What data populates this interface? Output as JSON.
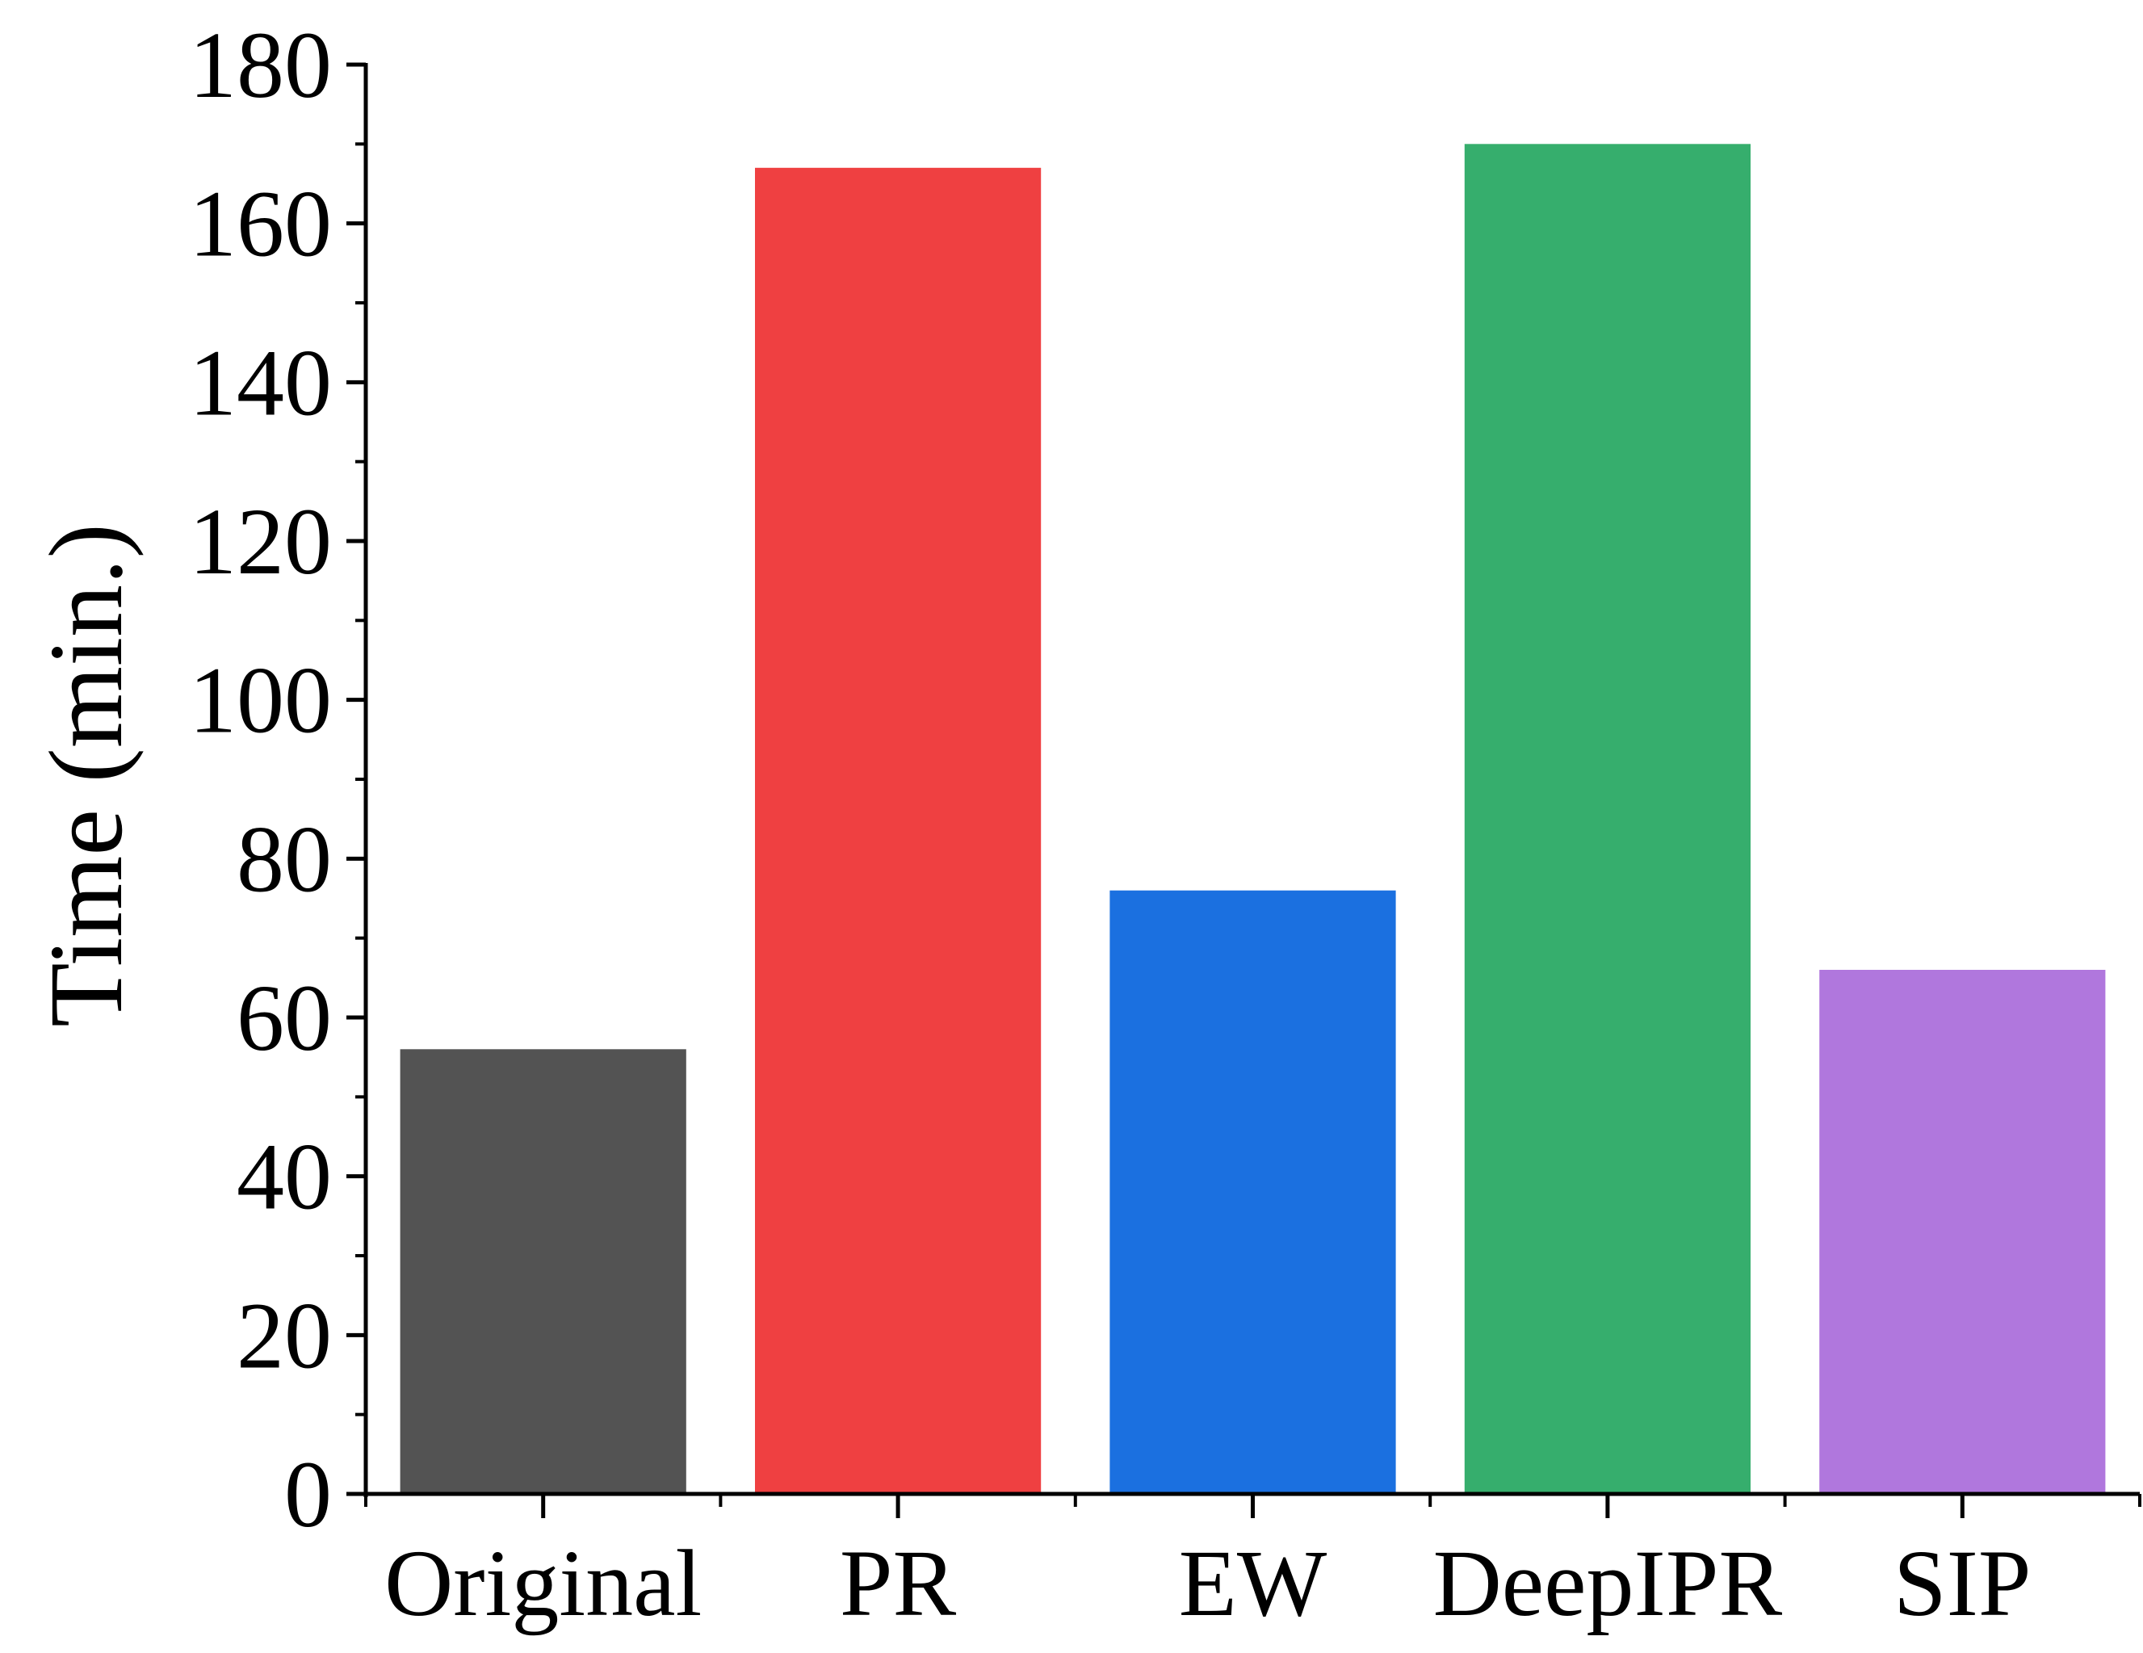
{
  "chart_data": {
    "type": "bar",
    "title": "",
    "xlabel": "",
    "ylabel": "Time (min.)",
    "categories": [
      "Original",
      "PR",
      "EW",
      "DeepIPR",
      "SIP"
    ],
    "values": [
      56,
      167,
      76,
      170,
      66
    ],
    "colors": [
      "#535353",
      "#ef4041",
      "#1b70e0",
      "#36ae6d",
      "#b077dd"
    ],
    "ylim": [
      0,
      180
    ],
    "yticks": [
      "0",
      "20",
      "40",
      "60",
      "80",
      "100",
      "120",
      "140",
      "160",
      "180"
    ],
    "grid": false,
    "legend": "none"
  }
}
